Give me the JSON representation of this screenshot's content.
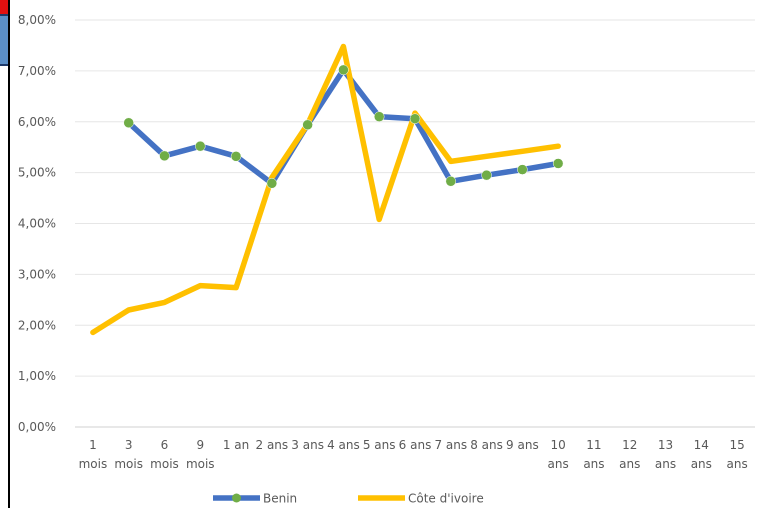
{
  "chart_data": {
    "type": "line",
    "categories": [
      [
        "1",
        "mois"
      ],
      [
        "3",
        "mois"
      ],
      [
        "6",
        "mois"
      ],
      [
        "9",
        "mois"
      ],
      [
        "1 an"
      ],
      [
        "2 ans"
      ],
      [
        "3 ans"
      ],
      [
        "4 ans"
      ],
      [
        "5 ans"
      ],
      [
        "6 ans"
      ],
      [
        "7 ans"
      ],
      [
        "8 ans"
      ],
      [
        "9 ans"
      ],
      [
        "10",
        "ans"
      ],
      [
        "11",
        "ans"
      ],
      [
        "12",
        "ans"
      ],
      [
        "13",
        "ans"
      ],
      [
        "14",
        "ans"
      ],
      [
        "15",
        "ans"
      ]
    ],
    "y_ticks": [
      "0,00%",
      "1,00%",
      "2,00%",
      "3,00%",
      "4,00%",
      "5,00%",
      "6,00%",
      "7,00%",
      "8,00%"
    ],
    "ylim": [
      0,
      8
    ],
    "grid": true,
    "legend_position": "bottom",
    "series": [
      {
        "name": "Benin",
        "color": "#4472c4",
        "marker_color": "#70ad47",
        "values": [
          null,
          5.98,
          5.33,
          5.52,
          5.32,
          4.79,
          5.94,
          7.02,
          6.1,
          6.06,
          4.83,
          4.95,
          5.06,
          5.18,
          null,
          null,
          null,
          null,
          null
        ]
      },
      {
        "name": "Côte d'ivoire",
        "color": "#ffc000",
        "values": [
          1.86,
          2.3,
          2.45,
          2.78,
          2.74,
          4.9,
          5.95,
          7.48,
          4.08,
          6.17,
          5.22,
          5.32,
          5.42,
          5.52,
          null,
          null,
          null,
          null,
          null
        ]
      }
    ]
  }
}
